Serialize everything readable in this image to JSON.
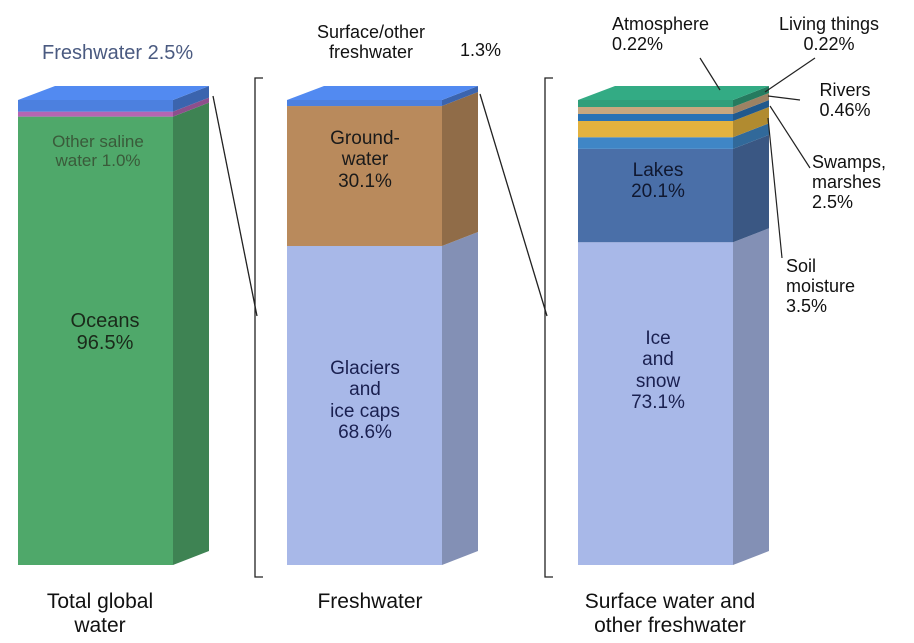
{
  "chart_data": {
    "type": "stacked-bar",
    "colors": {
      "oceans": "#4fa86a",
      "other_saline": "#b565b3",
      "freshwater_top": "#4c80df",
      "glaciers": "#a8b8e8",
      "groundwater": "#b98a5c",
      "surface_top": "#4c80df",
      "ice_snow": "#a8b8e8",
      "lakes": "#4a6fa8",
      "swamps": "#3f86c6",
      "soil": "#e3b23e",
      "rivers": "#2a72b5",
      "atmosphere": "#c9a77f",
      "living": "#2f9e7a",
      "leader_line": "#222222"
    },
    "bars": [
      {
        "name": "Total global water",
        "segments": [
          {
            "label": "Oceans",
            "value": 96.5,
            "text": "Oceans\n96.5%",
            "color_key": "oceans"
          },
          {
            "label": "Other saline water",
            "value": 1.0,
            "text": "Other saline\nwater 1.0%",
            "color_key": "other_saline"
          },
          {
            "label": "Freshwater",
            "value": 2.5,
            "text": "Freshwater 2.5%",
            "color_key": "freshwater_top"
          }
        ]
      },
      {
        "name": "Freshwater",
        "segments": [
          {
            "label": "Glaciers and ice caps",
            "value": 68.6,
            "text": "Glaciers\nand\nice caps\n68.6%",
            "color_key": "glaciers"
          },
          {
            "label": "Ground-water",
            "value": 30.1,
            "text": "Ground-\nwater\n30.1%",
            "color_key": "groundwater"
          },
          {
            "label": "Surface/other freshwater",
            "value": 1.3,
            "text": "Surface/other\nfreshwater",
            "value_text": "1.3%",
            "color_key": "surface_top"
          }
        ]
      },
      {
        "name": "Surface water and other freshwater",
        "segments": [
          {
            "label": "Ice and snow",
            "value": 73.1,
            "text": "Ice\nand\nsnow\n73.1%",
            "color_key": "ice_snow"
          },
          {
            "label": "Lakes",
            "value": 20.1,
            "text": "Lakes\n20.1%",
            "color_key": "lakes"
          },
          {
            "label": "Swamps, marshes",
            "value": 2.5,
            "text": "Swamps,\nmarshes\n2.5%",
            "color_key": "swamps"
          },
          {
            "label": "Soil moisture",
            "value": 3.5,
            "text": "Soil\nmoisture\n3.5%",
            "color_key": "soil"
          },
          {
            "label": "Rivers",
            "value": 0.46,
            "text": "Rivers\n0.46%",
            "color_key": "rivers"
          },
          {
            "label": "Atmosphere",
            "value": 0.22,
            "text": "Atmosphere\n0.22%",
            "color_key": "atmosphere"
          },
          {
            "label": "Living things",
            "value": 0.22,
            "text": "Living things\n0.22%",
            "color_key": "living"
          }
        ]
      }
    ],
    "xlabels": [
      "Total global\nwater",
      "Freshwater",
      "Surface water and\nother freshwater"
    ]
  }
}
